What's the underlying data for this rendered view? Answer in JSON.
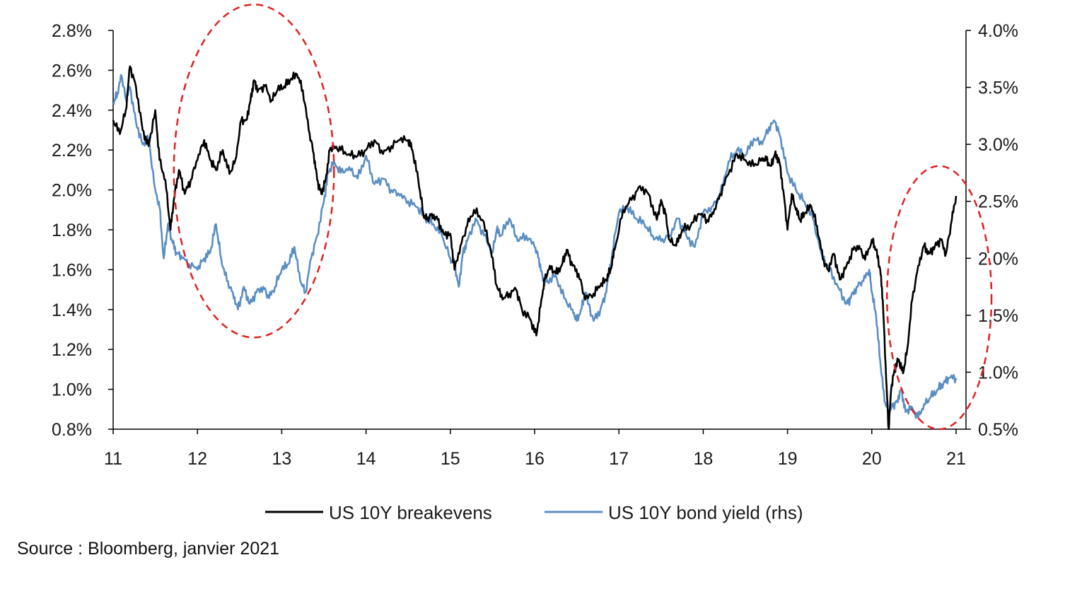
{
  "chart_data": {
    "type": "line",
    "title": "",
    "xlabel": "",
    "ylabel_left": "",
    "ylabel_right": "",
    "x_ticks": [
      "11",
      "12",
      "13",
      "14",
      "15",
      "16",
      "17",
      "18",
      "19",
      "20",
      "21"
    ],
    "x_range": [
      2011,
      2021
    ],
    "y_left": {
      "range": [
        0.8,
        2.8
      ],
      "ticks": [
        "0.8%",
        "1.0%",
        "1.2%",
        "1.4%",
        "1.6%",
        "1.8%",
        "2.0%",
        "2.2%",
        "2.4%",
        "2.6%",
        "2.8%"
      ]
    },
    "y_right": {
      "range": [
        0.5,
        4.0
      ],
      "ticks": [
        "0.5%",
        "1.0%",
        "1.5%",
        "2.0%",
        "2.5%",
        "3.0%",
        "3.5%",
        "4.0%"
      ]
    },
    "grid": false,
    "legend_position": "bottom",
    "series": [
      {
        "name": "US 10Y breakevens",
        "axis": "left",
        "color": "#000000",
        "x": [
          2011.0,
          2011.08,
          2011.15,
          2011.2,
          2011.27,
          2011.35,
          2011.42,
          2011.5,
          2011.55,
          2011.62,
          2011.68,
          2011.72,
          2011.78,
          2011.85,
          2011.92,
          2012.0,
          2012.08,
          2012.15,
          2012.22,
          2012.3,
          2012.38,
          2012.45,
          2012.52,
          2012.58,
          2012.63,
          2012.67,
          2012.72,
          2012.8,
          2012.88,
          2012.95,
          2013.03,
          2013.1,
          2013.18,
          2013.25,
          2013.32,
          2013.38,
          2013.42,
          2013.47,
          2013.52,
          2013.57,
          2013.62,
          2013.7,
          2013.8,
          2013.9,
          2014.0,
          2014.1,
          2014.2,
          2014.3,
          2014.4,
          2014.5,
          2014.55,
          2014.62,
          2014.68,
          2014.72,
          2014.78,
          2014.85,
          2014.92,
          2015.0,
          2015.05,
          2015.12,
          2015.2,
          2015.28,
          2015.38,
          2015.48,
          2015.55,
          2015.62,
          2015.7,
          2015.78,
          2015.85,
          2015.95,
          2016.02,
          2016.08,
          2016.12,
          2016.18,
          2016.25,
          2016.32,
          2016.38,
          2016.45,
          2016.52,
          2016.6,
          2016.7,
          2016.78,
          2016.85,
          2016.9,
          2016.95,
          2017.05,
          2017.15,
          2017.25,
          2017.35,
          2017.45,
          2017.5,
          2017.55,
          2017.6,
          2017.68,
          2017.75,
          2017.85,
          2017.95,
          2018.05,
          2018.12,
          2018.2,
          2018.3,
          2018.4,
          2018.5,
          2018.6,
          2018.7,
          2018.75,
          2018.8,
          2018.85,
          2018.9,
          2018.95,
          2019.0,
          2019.05,
          2019.1,
          2019.15,
          2019.2,
          2019.28,
          2019.35,
          2019.42,
          2019.48,
          2019.55,
          2019.62,
          2019.7,
          2019.78,
          2019.85,
          2019.92,
          2020.0,
          2020.05,
          2020.1,
          2020.13,
          2020.17,
          2020.2,
          2020.23,
          2020.27,
          2020.32,
          2020.37,
          2020.42,
          2020.48,
          2020.55,
          2020.62,
          2020.68,
          2020.75,
          2020.82,
          2020.88,
          2020.95,
          2021.0
        ],
        "values": [
          2.35,
          2.28,
          2.4,
          2.62,
          2.52,
          2.3,
          2.22,
          2.4,
          2.15,
          2.05,
          1.8,
          1.95,
          2.1,
          1.98,
          2.05,
          2.15,
          2.25,
          2.15,
          2.1,
          2.2,
          2.08,
          2.15,
          2.35,
          2.35,
          2.45,
          2.55,
          2.5,
          2.52,
          2.45,
          2.5,
          2.52,
          2.55,
          2.58,
          2.5,
          2.3,
          2.18,
          2.05,
          1.98,
          2.05,
          2.2,
          2.22,
          2.2,
          2.18,
          2.17,
          2.2,
          2.25,
          2.18,
          2.22,
          2.25,
          2.25,
          2.2,
          2.05,
          1.88,
          1.85,
          1.88,
          1.85,
          1.78,
          1.78,
          1.6,
          1.72,
          1.82,
          1.9,
          1.85,
          1.7,
          1.52,
          1.45,
          1.48,
          1.5,
          1.4,
          1.35,
          1.27,
          1.45,
          1.55,
          1.62,
          1.58,
          1.62,
          1.7,
          1.62,
          1.58,
          1.45,
          1.48,
          1.52,
          1.55,
          1.6,
          1.7,
          1.9,
          1.95,
          2.02,
          1.98,
          1.85,
          1.95,
          1.88,
          1.75,
          1.72,
          1.8,
          1.82,
          1.88,
          1.85,
          1.88,
          1.98,
          2.08,
          2.18,
          2.15,
          2.12,
          2.16,
          2.15,
          2.12,
          2.18,
          2.15,
          2.0,
          1.8,
          1.98,
          1.9,
          1.85,
          1.88,
          1.92,
          1.82,
          1.65,
          1.6,
          1.68,
          1.55,
          1.62,
          1.7,
          1.72,
          1.65,
          1.75,
          1.7,
          1.6,
          1.45,
          1.05,
          0.8,
          1.0,
          1.1,
          1.15,
          1.08,
          1.2,
          1.45,
          1.62,
          1.72,
          1.68,
          1.72,
          1.75,
          1.68,
          1.85,
          1.97
        ]
      },
      {
        "name": "US 10Y bond yield (rhs)",
        "axis": "right",
        "color": "#5a8ec3",
        "x": [
          2011.0,
          2011.05,
          2011.1,
          2011.15,
          2011.2,
          2011.27,
          2011.35,
          2011.42,
          2011.5,
          2011.55,
          2011.6,
          2011.65,
          2011.7,
          2011.75,
          2011.82,
          2011.9,
          2012.0,
          2012.08,
          2012.15,
          2012.22,
          2012.28,
          2012.35,
          2012.42,
          2012.48,
          2012.55,
          2012.62,
          2012.7,
          2012.78,
          2012.85,
          2012.92,
          2013.0,
          2013.08,
          2013.15,
          2013.22,
          2013.28,
          2013.35,
          2013.42,
          2013.5,
          2013.55,
          2013.62,
          2013.7,
          2013.8,
          2013.9,
          2014.0,
          2014.1,
          2014.2,
          2014.3,
          2014.4,
          2014.5,
          2014.6,
          2014.7,
          2014.8,
          2014.9,
          2015.0,
          2015.05,
          2015.1,
          2015.15,
          2015.2,
          2015.3,
          2015.4,
          2015.5,
          2015.55,
          2015.6,
          2015.7,
          2015.8,
          2015.9,
          2016.0,
          2016.05,
          2016.1,
          2016.15,
          2016.25,
          2016.35,
          2016.45,
          2016.5,
          2016.55,
          2016.6,
          2016.7,
          2016.78,
          2016.85,
          2016.92,
          2017.0,
          2017.1,
          2017.2,
          2017.3,
          2017.4,
          2017.5,
          2017.6,
          2017.7,
          2017.8,
          2017.9,
          2018.0,
          2018.1,
          2018.2,
          2018.3,
          2018.4,
          2018.5,
          2018.6,
          2018.7,
          2018.78,
          2018.85,
          2018.92,
          2019.0,
          2019.1,
          2019.2,
          2019.3,
          2019.4,
          2019.5,
          2019.6,
          2019.7,
          2019.75,
          2019.82,
          2019.9,
          2019.97,
          2020.0,
          2020.05,
          2020.1,
          2020.15,
          2020.2,
          2020.25,
          2020.3,
          2020.35,
          2020.4,
          2020.47,
          2020.55,
          2020.62,
          2020.7,
          2020.78,
          2020.85,
          2020.92,
          2021.0
        ],
        "values": [
          3.35,
          3.45,
          3.6,
          3.4,
          3.5,
          3.2,
          3.0,
          3.05,
          2.6,
          2.45,
          2.0,
          2.3,
          2.15,
          2.05,
          2.0,
          1.95,
          1.9,
          2.0,
          2.05,
          2.3,
          2.0,
          1.8,
          1.7,
          1.55,
          1.75,
          1.6,
          1.7,
          1.75,
          1.65,
          1.75,
          1.9,
          1.95,
          2.1,
          1.8,
          1.7,
          2.0,
          2.2,
          2.5,
          2.75,
          2.85,
          2.75,
          2.8,
          2.7,
          2.9,
          2.65,
          2.7,
          2.6,
          2.55,
          2.5,
          2.45,
          2.35,
          2.3,
          2.2,
          2.0,
          1.95,
          1.75,
          2.05,
          2.15,
          2.35,
          2.2,
          2.05,
          2.25,
          2.2,
          2.35,
          2.15,
          2.2,
          2.1,
          2.0,
          1.8,
          1.8,
          1.85,
          1.65,
          1.55,
          1.45,
          1.55,
          1.7,
          1.45,
          1.55,
          1.7,
          2.05,
          2.4,
          2.45,
          2.35,
          2.3,
          2.2,
          2.15,
          2.2,
          2.35,
          2.2,
          2.1,
          2.4,
          2.45,
          2.55,
          2.85,
          2.95,
          2.9,
          3.05,
          3.0,
          3.15,
          3.2,
          3.05,
          2.75,
          2.6,
          2.5,
          2.35,
          2.05,
          1.9,
          1.75,
          1.6,
          1.65,
          1.75,
          1.8,
          1.9,
          1.7,
          1.5,
          1.1,
          0.75,
          0.65,
          0.7,
          0.75,
          0.85,
          0.65,
          0.7,
          0.6,
          0.72,
          0.78,
          0.85,
          0.9,
          0.95,
          0.95
        ]
      }
    ],
    "annotations": [
      {
        "shape": "dashed-ellipse",
        "color": "#e02020",
        "x_range": [
          2011.72,
          2013.62
        ],
        "y_left_range": [
          1.26,
          2.93
        ]
      },
      {
        "shape": "dashed-ellipse",
        "color": "#e02020",
        "x_range": [
          2020.18,
          2021.42
        ],
        "y_left_range": [
          0.8,
          2.12
        ]
      }
    ]
  },
  "source": "Source : Bloomberg, janvier 2021"
}
